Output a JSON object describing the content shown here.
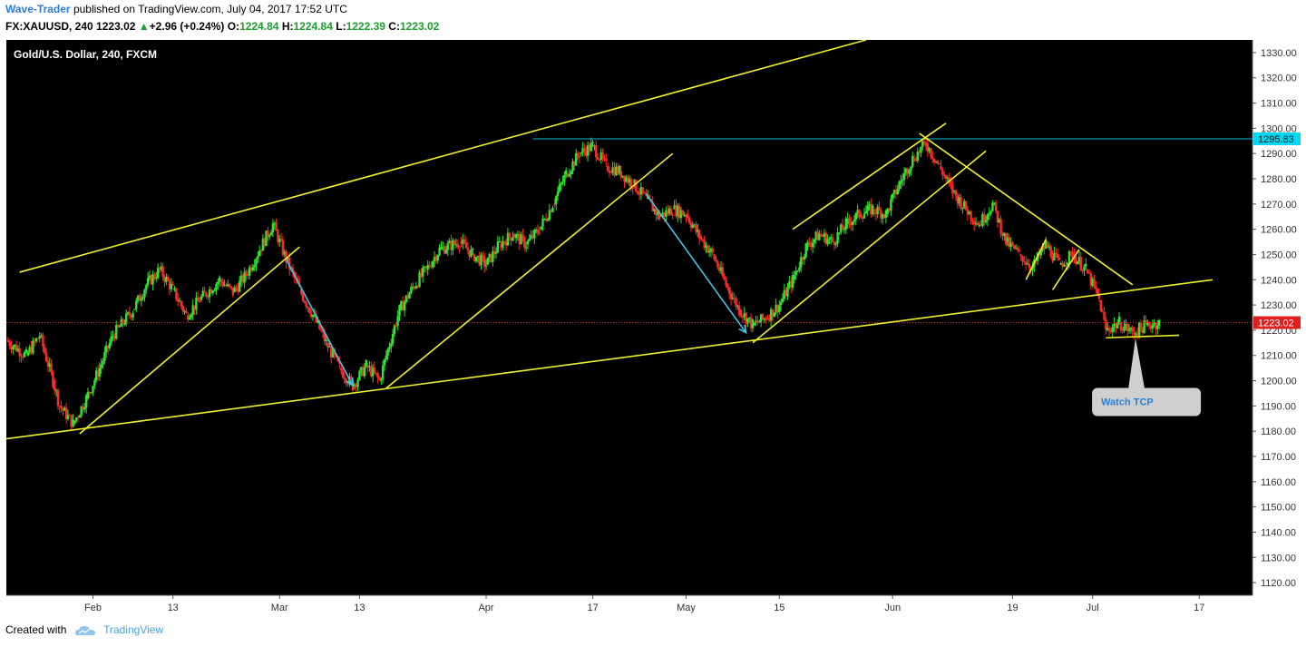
{
  "header": {
    "author": "Wave-Trader",
    "published_text": "published on TradingView.com, July 04, 2017 17:52 UTC",
    "symbol": "FX:XAUUSD, 240",
    "price": "1223.02",
    "change": "+2.96 (+0.24%)",
    "open_label": "O:",
    "open": "1224.84",
    "high_label": "H:",
    "high": "1224.84",
    "low_label": "L:",
    "low": "1222.39",
    "close_label": "C:",
    "close": "1223.02"
  },
  "footer": {
    "created_with": "Created with",
    "brand": "TradingView"
  },
  "chart_data": {
    "type": "candlestick",
    "title": "Gold/U.S. Dollar, 240, FXCM",
    "x_unit": "date (2017)",
    "xlim": [
      "2017-01-19",
      "2017-07-25"
    ],
    "ylim": [
      1115,
      1335
    ],
    "y_ticks": [
      1120,
      1130,
      1140,
      1150,
      1160,
      1170,
      1180,
      1190,
      1200,
      1210,
      1220,
      1230,
      1240,
      1250,
      1260,
      1270,
      1280,
      1290,
      1300,
      1310,
      1320,
      1330
    ],
    "y_tick_labels": [
      "1120.00",
      "1130.00",
      "1140.00",
      "1150.00",
      "1160.00",
      "1170.00",
      "1180.00",
      "1190.00",
      "1200.00",
      "1210.00",
      "1220.00",
      "1230.00",
      "1240.00",
      "1250.00",
      "1260.00",
      "1270.00",
      "1280.00",
      "1290.00",
      "1300.00",
      "1310.00",
      "1320.00",
      "1330.00"
    ],
    "x_ticks": [
      {
        "date": "2017-02-01",
        "label": "Feb"
      },
      {
        "date": "2017-02-13",
        "label": "13"
      },
      {
        "date": "2017-03-01",
        "label": "Mar"
      },
      {
        "date": "2017-03-13",
        "label": "13"
      },
      {
        "date": "2017-04-01",
        "label": "Apr"
      },
      {
        "date": "2017-04-17",
        "label": "17"
      },
      {
        "date": "2017-05-01",
        "label": "May"
      },
      {
        "date": "2017-05-15",
        "label": "15"
      },
      {
        "date": "2017-06-01",
        "label": "Jun"
      },
      {
        "date": "2017-06-19",
        "label": "19"
      },
      {
        "date": "2017-07-01",
        "label": "Jul"
      },
      {
        "date": "2017-07-17",
        "label": "17"
      }
    ],
    "price_path": [
      [
        "2017-01-19",
        1216
      ],
      [
        "2017-01-22",
        1210
      ],
      [
        "2017-01-24",
        1218
      ],
      [
        "2017-01-26",
        1200
      ],
      [
        "2017-01-27",
        1190
      ],
      [
        "2017-01-29",
        1183
      ],
      [
        "2017-01-31",
        1193
      ],
      [
        "2017-02-02",
        1205
      ],
      [
        "2017-02-04",
        1218
      ],
      [
        "2017-02-07",
        1228
      ],
      [
        "2017-02-09",
        1238
      ],
      [
        "2017-02-11",
        1244
      ],
      [
        "2017-02-13",
        1236
      ],
      [
        "2017-02-15",
        1226
      ],
      [
        "2017-02-17",
        1232
      ],
      [
        "2017-02-20",
        1240
      ],
      [
        "2017-02-22",
        1235
      ],
      [
        "2017-02-24",
        1242
      ],
      [
        "2017-02-26",
        1252
      ],
      [
        "2017-02-28",
        1262
      ],
      [
        "2017-03-02",
        1248
      ],
      [
        "2017-03-04",
        1236
      ],
      [
        "2017-03-06",
        1226
      ],
      [
        "2017-03-08",
        1215
      ],
      [
        "2017-03-10",
        1205
      ],
      [
        "2017-03-12",
        1198
      ],
      [
        "2017-03-14",
        1206
      ],
      [
        "2017-03-16",
        1200
      ],
      [
        "2017-03-17",
        1210
      ],
      [
        "2017-03-19",
        1228
      ],
      [
        "2017-03-21",
        1237
      ],
      [
        "2017-03-23",
        1244
      ],
      [
        "2017-03-25",
        1252
      ],
      [
        "2017-03-28",
        1255
      ],
      [
        "2017-03-30",
        1250
      ],
      [
        "2017-04-01",
        1246
      ],
      [
        "2017-04-03",
        1254
      ],
      [
        "2017-04-05",
        1258
      ],
      [
        "2017-04-07",
        1254
      ],
      [
        "2017-04-09",
        1260
      ],
      [
        "2017-04-11",
        1270
      ],
      [
        "2017-04-13",
        1282
      ],
      [
        "2017-04-15",
        1290
      ],
      [
        "2017-04-17",
        1293
      ],
      [
        "2017-04-19",
        1285
      ],
      [
        "2017-04-21",
        1283
      ],
      [
        "2017-04-23",
        1278
      ],
      [
        "2017-04-25",
        1272
      ],
      [
        "2017-04-27",
        1265
      ],
      [
        "2017-04-29",
        1268
      ],
      [
        "2017-05-01",
        1266
      ],
      [
        "2017-05-03",
        1257
      ],
      [
        "2017-05-05",
        1250
      ],
      [
        "2017-05-07",
        1238
      ],
      [
        "2017-05-09",
        1228
      ],
      [
        "2017-05-11",
        1222
      ],
      [
        "2017-05-13",
        1225
      ],
      [
        "2017-05-15",
        1230
      ],
      [
        "2017-05-17",
        1240
      ],
      [
        "2017-05-19",
        1253
      ],
      [
        "2017-05-21",
        1258
      ],
      [
        "2017-05-23",
        1255
      ],
      [
        "2017-05-25",
        1262
      ],
      [
        "2017-05-27",
        1266
      ],
      [
        "2017-05-29",
        1268
      ],
      [
        "2017-05-31",
        1266
      ],
      [
        "2017-06-02",
        1278
      ],
      [
        "2017-06-04",
        1288
      ],
      [
        "2017-06-06",
        1294
      ],
      [
        "2017-06-08",
        1285
      ],
      [
        "2017-06-10",
        1275
      ],
      [
        "2017-06-12",
        1268
      ],
      [
        "2017-06-14",
        1262
      ],
      [
        "2017-06-16",
        1270
      ],
      [
        "2017-06-18",
        1255
      ],
      [
        "2017-06-20",
        1250
      ],
      [
        "2017-06-22",
        1245
      ],
      [
        "2017-06-24",
        1254
      ],
      [
        "2017-06-26",
        1246
      ],
      [
        "2017-06-28",
        1250
      ],
      [
        "2017-06-30",
        1244
      ],
      [
        "2017-07-02",
        1232
      ],
      [
        "2017-07-03",
        1220
      ],
      [
        "2017-07-05",
        1223
      ],
      [
        "2017-07-07",
        1219
      ],
      [
        "2017-07-09",
        1222
      ],
      [
        "2017-07-11",
        1223
      ]
    ],
    "horizontal_lines": [
      {
        "price": 1295.83,
        "label": "1295.83",
        "color": "#00bcd4",
        "start": "2017-04-08"
      },
      {
        "price": 1223.02,
        "label": "1223.02",
        "color": "#e02020",
        "style": "dotted",
        "start": "2017-01-19"
      }
    ],
    "trend_lines": [
      {
        "from": [
          "2017-01-19",
          1177
        ],
        "to": [
          "2017-07-19",
          1240
        ]
      },
      {
        "from": [
          "2017-01-21",
          1243
        ],
        "to": [
          "2017-05-28",
          1335
        ]
      },
      {
        "from": [
          "2017-01-30",
          1179
        ],
        "to": [
          "2017-03-04",
          1253
        ]
      },
      {
        "from": [
          "2017-03-17",
          1197
        ],
        "to": [
          "2017-04-29",
          1290
        ]
      },
      {
        "from": [
          "2017-05-11",
          1215
        ],
        "to": [
          "2017-06-15",
          1291
        ]
      },
      {
        "from": [
          "2017-05-17",
          1260
        ],
        "to": [
          "2017-06-09",
          1302
        ]
      },
      {
        "from": [
          "2017-06-05",
          1298
        ],
        "to": [
          "2017-07-07",
          1238
        ]
      },
      {
        "from": [
          "2017-06-21",
          1240
        ],
        "to": [
          "2017-06-24",
          1256
        ]
      },
      {
        "from": [
          "2017-06-25",
          1236
        ],
        "to": [
          "2017-06-29",
          1252
        ]
      },
      {
        "from": [
          "2017-07-03",
          1217
        ],
        "to": [
          "2017-07-14",
          1218
        ]
      }
    ],
    "arrows": [
      {
        "from": [
          "2017-03-02",
          1248
        ],
        "to": [
          "2017-03-12",
          1198
        ],
        "color": "#40c4e8"
      },
      {
        "from": [
          "2017-04-25",
          1274
        ],
        "to": [
          "2017-05-10",
          1219
        ],
        "color": "#40c4e8"
      }
    ],
    "annotation": {
      "text": "Watch TCP",
      "date": "2017-07-08",
      "price": 1218
    }
  }
}
